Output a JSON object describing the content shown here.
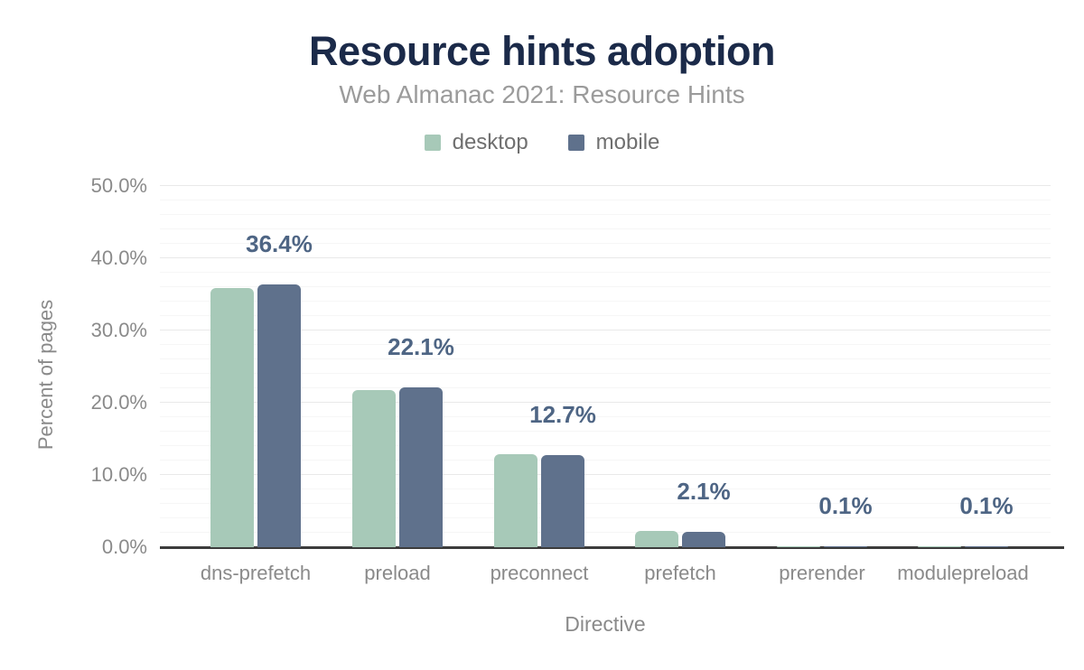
{
  "chart": {
    "title": "Resource hints adoption",
    "subtitle": "Web Almanac 2021: Resource Hints"
  },
  "chart_data": {
    "type": "bar",
    "title": "Resource hints adoption",
    "subtitle": "Web Almanac 2021: Resource Hints",
    "xlabel": "Directive",
    "ylabel": "Percent of pages",
    "categories": [
      "dns-prefetch",
      "preload",
      "preconnect",
      "prefetch",
      "prerender",
      "modulepreload"
    ],
    "series": [
      {
        "name": "desktop",
        "color": "#a7c9b8",
        "values": [
          35.9,
          21.8,
          12.9,
          2.3,
          0.1,
          0.1
        ]
      },
      {
        "name": "mobile",
        "color": "#5f718c",
        "values": [
          36.4,
          22.1,
          12.7,
          2.1,
          0.1,
          0.1
        ]
      }
    ],
    "data_labels": [
      "36.4%",
      "22.1%",
      "12.7%",
      "2.1%",
      "0.1%",
      "0.1%"
    ],
    "data_labels_series": "mobile",
    "y_ticks": [
      "0.0%",
      "10.0%",
      "20.0%",
      "30.0%",
      "40.0%",
      "50.0%"
    ],
    "ylim": [
      0,
      50
    ],
    "grid": {
      "horizontal": true,
      "major_step": 10,
      "minor_step": 2
    },
    "legend_position": "top"
  },
  "colors": {
    "title": "#1b2a49",
    "subtitle": "#9b9b9b",
    "legend_text": "#6f6f6f",
    "tick_text": "#8a8a8a",
    "axis_title_text": "#8a8a8a",
    "value_label": "#4e6584",
    "axis_line": "#3c3c3c",
    "grid_major": "#e9e9e9",
    "grid_minor": "#f6f6f6",
    "background": "#ffffff"
  }
}
